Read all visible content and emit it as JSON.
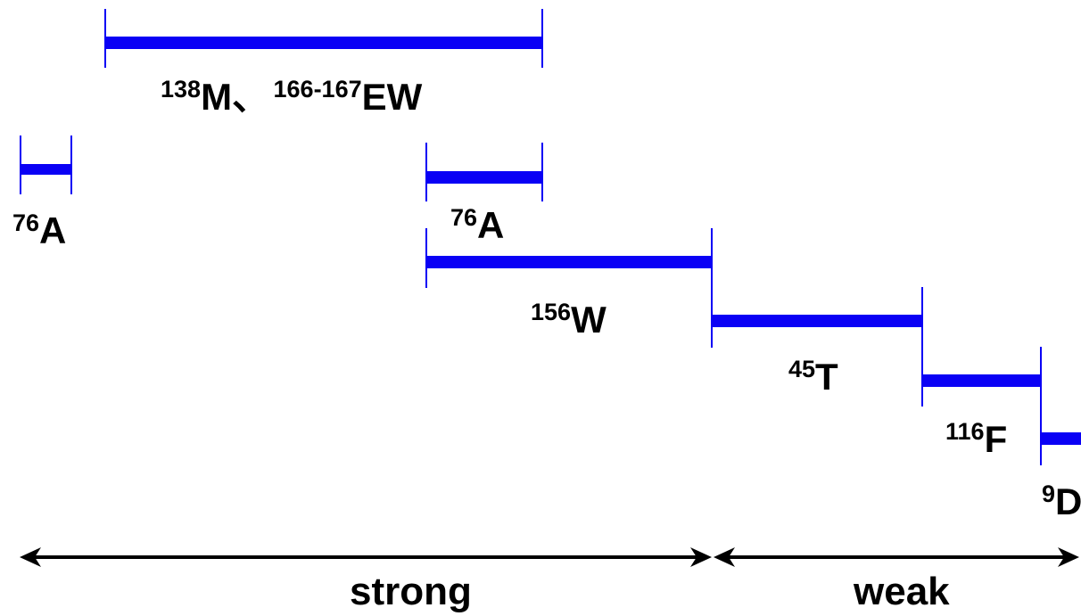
{
  "colors": {
    "bar": "#0a00f5",
    "axis": "#000000"
  },
  "segments": [
    {
      "id": "seg-138M-166-167EW",
      "sup1": "138",
      "main1": "M、",
      "sup2": "166-167",
      "main2": "EW"
    },
    {
      "id": "seg-76A-left",
      "sup1": "76",
      "main1": "A"
    },
    {
      "id": "seg-76A-mid",
      "sup1": "76",
      "main1": "A"
    },
    {
      "id": "seg-156W",
      "sup1": "156",
      "main1": "W"
    },
    {
      "id": "seg-45T",
      "sup1": "45",
      "main1": "T"
    },
    {
      "id": "seg-116F",
      "sup1": "116",
      "main1": "F"
    },
    {
      "id": "seg-9D",
      "sup1": "9",
      "main1": "D"
    }
  ],
  "scale": {
    "strong": "strong",
    "weak": "weak"
  }
}
